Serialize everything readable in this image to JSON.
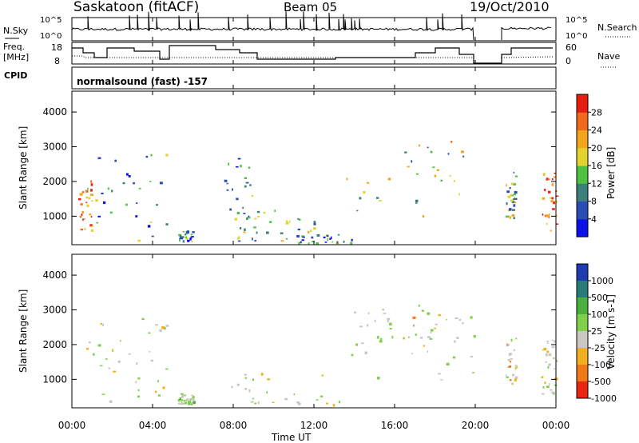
{
  "header": {
    "station": "Saskatoon (fitACF)",
    "beam": "Beam 05",
    "date": "19/Oct/2010"
  },
  "panels": {
    "nsky_label": "N.Sky",
    "nsky_ticks": [
      "10^5",
      "10^0"
    ],
    "nsearch_label": "N.Search",
    "nsearch_ticks": [
      "10^5",
      "10^0"
    ],
    "freq_label_line1": "Freq.",
    "freq_label_line2": "[MHz]",
    "freq_ticks": [
      "18",
      "8"
    ],
    "nave_label": "Nave",
    "nave_ticks": [
      "60",
      "0"
    ],
    "cpid_label": "CPID",
    "cpid_value": "normalsound (fast) -157"
  },
  "axes": {
    "xlabel": "Time UT",
    "xticks": [
      "00:00",
      "04:00",
      "08:00",
      "12:00",
      "16:00",
      "20:00",
      "00:00"
    ],
    "ylabel": "Slant Range [km]",
    "yticks": [
      "1000",
      "2000",
      "3000",
      "4000"
    ]
  },
  "colorbars": {
    "power": {
      "label": "Power [dB]",
      "ticks": [
        "4",
        "8",
        "12",
        "16",
        "20",
        "24",
        "28"
      ],
      "colors": [
        "#0b12e8",
        "#2a4db3",
        "#3a7f7a",
        "#4fc140",
        "#e3d32e",
        "#f4a51e",
        "#f06a1b",
        "#e81d12"
      ]
    },
    "velocity": {
      "label": "Velocity [m s-1]",
      "ticks": [
        "1000",
        "500",
        "100",
        "25",
        "-25",
        "-100",
        "-500",
        "-1000"
      ],
      "colors": [
        "#1f3bb0",
        "#2b7a7a",
        "#4caf3e",
        "#7fd04a",
        "#c8c8c0",
        "#f2b01e",
        "#f07a18",
        "#e82612"
      ]
    }
  },
  "chart_data": [
    {
      "type": "heatmap",
      "title": "Power [dB]",
      "xlabel": "Time UT",
      "ylabel": "Slant Range [km]",
      "xlim": [
        "00:00",
        "24:00"
      ],
      "ylim": [
        180,
        4600
      ],
      "color_scale": [
        0,
        32
      ],
      "regions": [
        {
          "t_start": "00:15",
          "t_end": "01:00",
          "range_km": [
            600,
            2200
          ],
          "power_db": 24
        },
        {
          "t_start": "01:00",
          "t_end": "04:45",
          "range_km": [
            300,
            2900
          ],
          "power_db": 10
        },
        {
          "t_start": "05:15",
          "t_end": "06:00",
          "range_km": [
            300,
            600
          ],
          "power_db": 8
        },
        {
          "t_start": "07:30",
          "t_end": "09:00",
          "range_km": [
            300,
            2700
          ],
          "power_db": 10
        },
        {
          "t_start": "08:00",
          "t_end": "12:00",
          "range_km": [
            300,
            1200
          ],
          "power_db": 14
        },
        {
          "t_start": "11:00",
          "t_end": "14:00",
          "range_km": [
            200,
            500
          ],
          "power_db": 8
        },
        {
          "t_start": "13:30",
          "t_end": "20:00",
          "range_km": [
            1000,
            3200
          ],
          "power_db": 16
        },
        {
          "t_start": "21:30",
          "t_end": "22:00",
          "range_km": [
            900,
            2300
          ],
          "power_db": 14
        },
        {
          "t_start": "23:15",
          "t_end": "24:00",
          "range_km": [
            600,
            2300
          ],
          "power_db": 26
        }
      ]
    },
    {
      "type": "heatmap",
      "title": "Velocity [m s-1]",
      "xlabel": "Time UT",
      "ylabel": "Slant Range [km]",
      "xlim": [
        "00:00",
        "24:00"
      ],
      "ylim": [
        180,
        4600
      ],
      "color_scale": [
        -1000,
        1000
      ],
      "regions": [
        {
          "t_start": "00:15",
          "t_end": "04:45",
          "range_km": [
            300,
            2900
          ],
          "velocity_ms": -60
        },
        {
          "t_start": "05:15",
          "t_end": "06:00",
          "range_km": [
            300,
            600
          ],
          "velocity_ms": 60
        },
        {
          "t_start": "07:30",
          "t_end": "14:00",
          "range_km": [
            200,
            1200
          ],
          "velocity_ms": -150
        },
        {
          "t_start": "13:30",
          "t_end": "20:00",
          "range_km": [
            1000,
            3200
          ],
          "velocity_ms": 0
        },
        {
          "t_start": "14:00",
          "t_end": "19:30",
          "range_km": [
            2000,
            3000
          ],
          "velocity_ms": -300
        },
        {
          "t_start": "21:30",
          "t_end": "22:00",
          "range_km": [
            900,
            2300
          ],
          "velocity_ms": -300
        },
        {
          "t_start": "23:15",
          "t_end": "24:00",
          "range_km": [
            600,
            2300
          ],
          "velocity_ms": -100
        }
      ]
    }
  ]
}
